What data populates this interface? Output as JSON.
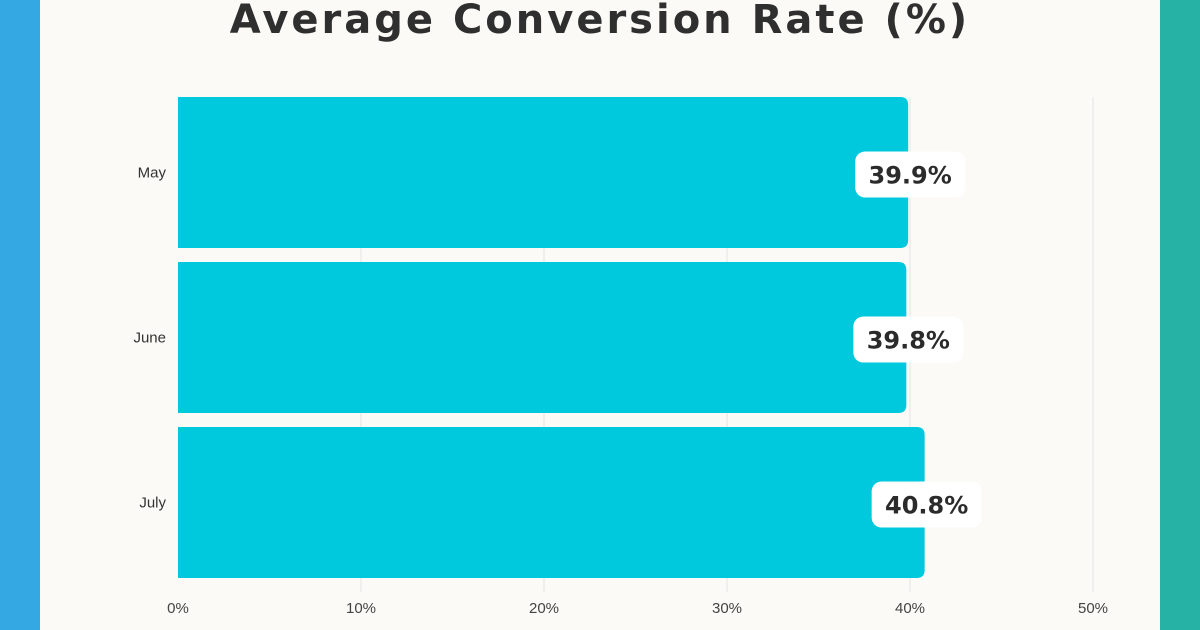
{
  "chart_data": {
    "type": "bar",
    "orientation": "horizontal",
    "title": "Average Conversion Rate (%)",
    "categories": [
      "May",
      "June",
      "July"
    ],
    "values": [
      39.9,
      39.8,
      40.8
    ],
    "value_labels": [
      "39.9%",
      "39.8%",
      "40.8%"
    ],
    "xlim": [
      0,
      50
    ],
    "x_ticks": [
      0,
      10,
      20,
      30,
      40,
      50
    ],
    "x_tick_labels": [
      "0%",
      "10%",
      "20%",
      "30%",
      "40%",
      "50%"
    ],
    "grid": "vertical",
    "legend": "none",
    "bar_color": "#00c9dd"
  },
  "colors": {
    "background": "#fbfaf7",
    "band_left": "#34a8e2",
    "band_right": "#26b3a5",
    "gridline": "#e4e4e4",
    "label_box": "#ffffff"
  }
}
